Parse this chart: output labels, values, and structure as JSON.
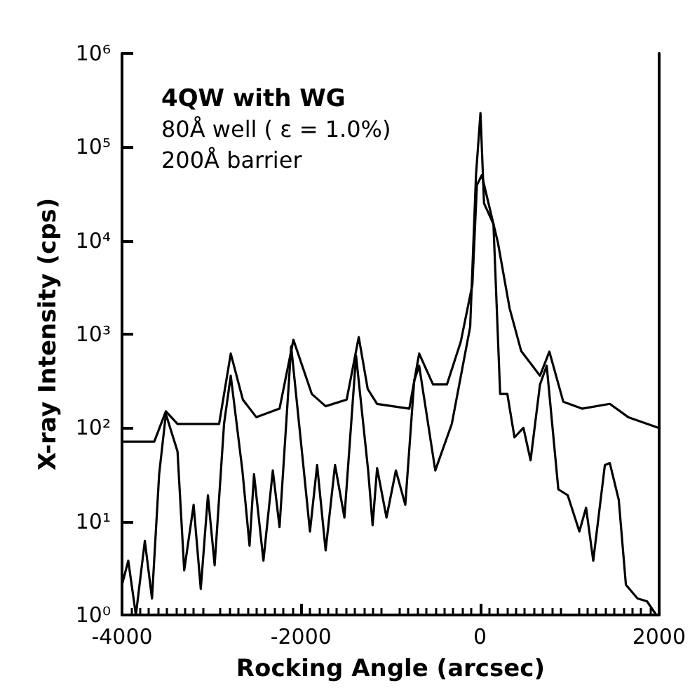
{
  "chart_data": {
    "type": "line",
    "xlabel": "Rocking Angle (arcsec)",
    "ylabel": "X-ray Intensity (cps)",
    "annotations": [
      "4QW with WG",
      "80Å well ( ε = 1.0%)",
      "200Å barrier"
    ],
    "log": "y",
    "grid": false,
    "marker": "none",
    "line_style": "solid",
    "xlim": [
      -4000,
      2000
    ],
    "xticks": [
      -4000,
      -2000,
      0,
      2000
    ],
    "ylim": [
      1,
      1000000
    ],
    "yticks": [
      {
        "value": 1,
        "label": "10⁰"
      },
      {
        "value": 10,
        "label": "10¹"
      },
      {
        "value": 100,
        "label": "10²"
      },
      {
        "value": 1000,
        "label": "10³"
      },
      {
        "value": 10000,
        "label": "10⁴"
      },
      {
        "value": 100000,
        "label": "10⁵"
      },
      {
        "value": 1000000,
        "label": "10⁶"
      }
    ],
    "series": [
      {
        "color": "#000000",
        "x": [
          -4000,
          -3640,
          -3510,
          -3380,
          -3120,
          -2915,
          -2785,
          -2650,
          -2500,
          -2240,
          -2085,
          -1880,
          -1725,
          -1490,
          -1355,
          -1255,
          -1150,
          -790,
          -680,
          -525,
          -370,
          -215,
          -85,
          -35,
          20,
          95,
          200,
          330,
          460,
          670,
          775,
          930,
          1140,
          1450,
          1655,
          1990
        ],
        "values": [
          71,
          71,
          150,
          110,
          110,
          110,
          620,
          200,
          130,
          160,
          870,
          230,
          170,
          200,
          930,
          260,
          180,
          160,
          620,
          290,
          290,
          830,
          3400,
          39000,
          50000,
          25000,
          9500,
          1900,
          660,
          360,
          650,
          190,
          160,
          180,
          130,
          100
        ]
      },
      {
        "color": "#000000",
        "x": [
          -4000,
          -3930,
          -3845,
          -3745,
          -3665,
          -3585,
          -3510,
          -3380,
          -3305,
          -3200,
          -3120,
          -3040,
          -2965,
          -2860,
          -2785,
          -2655,
          -2575,
          -2525,
          -2420,
          -2315,
          -2240,
          -2110,
          -1980,
          -1900,
          -1820,
          -1725,
          -1620,
          -1515,
          -1385,
          -1250,
          -1200,
          -1150,
          -1045,
          -940,
          -835,
          -735,
          -680,
          -500,
          -315,
          -110,
          -45,
          5,
          45,
          150,
          225,
          305,
          385,
          485,
          565,
          670,
          745,
          875,
          980,
          1110,
          1185,
          1265,
          1395,
          1450,
          1550,
          1630,
          1760,
          1865,
          1970
        ],
        "values": [
          2.1,
          3.8,
          1,
          6.2,
          1.5,
          32,
          140,
          56,
          3,
          15,
          1.9,
          19,
          3.4,
          110,
          360,
          35,
          5.5,
          32,
          3.8,
          35,
          8.7,
          740,
          45,
          7.8,
          40,
          4.9,
          40,
          11,
          590,
          35,
          9.1,
          37,
          11,
          35,
          15,
          320,
          460,
          35,
          110,
          1200,
          50000,
          230000,
          25000,
          15000,
          230,
          230,
          79,
          100,
          45,
          290,
          460,
          22,
          19,
          7.8,
          14,
          3.8,
          40,
          42,
          17,
          2.1,
          1.5,
          1.4,
          1
        ]
      }
    ]
  }
}
